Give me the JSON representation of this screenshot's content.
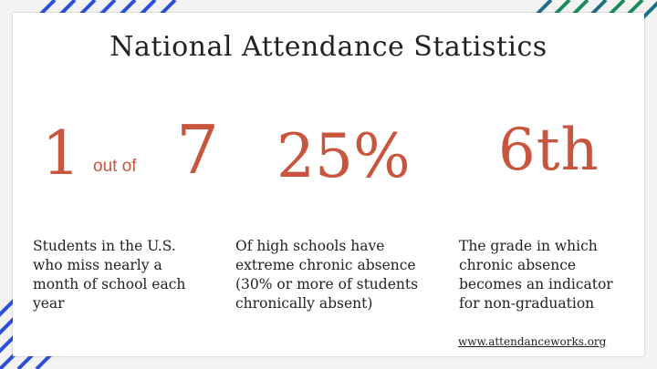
{
  "slide": {
    "title": "National Attendance Statistics",
    "stats": [
      {
        "number": "1",
        "connector": "out of",
        "number2": "7",
        "description": "Students in the U.S.\nwho miss nearly a\nmonth of school each\nyear"
      },
      {
        "number": "25%",
        "description": "Of high schools have\nextreme chronic absence\n(30% or more of students\nchronically absent)"
      },
      {
        "number": "6th",
        "description": "The grade in which\nchronic absence\nbecomes an indicator\nfor non-graduation"
      }
    ],
    "link": "www.attendanceworks.org"
  },
  "colors": {
    "accent": "#c8553d",
    "stripe_blue": "#2b4fd8",
    "stripe_green": "#1f8a5c",
    "stripe_teal": "#1f6f86"
  }
}
